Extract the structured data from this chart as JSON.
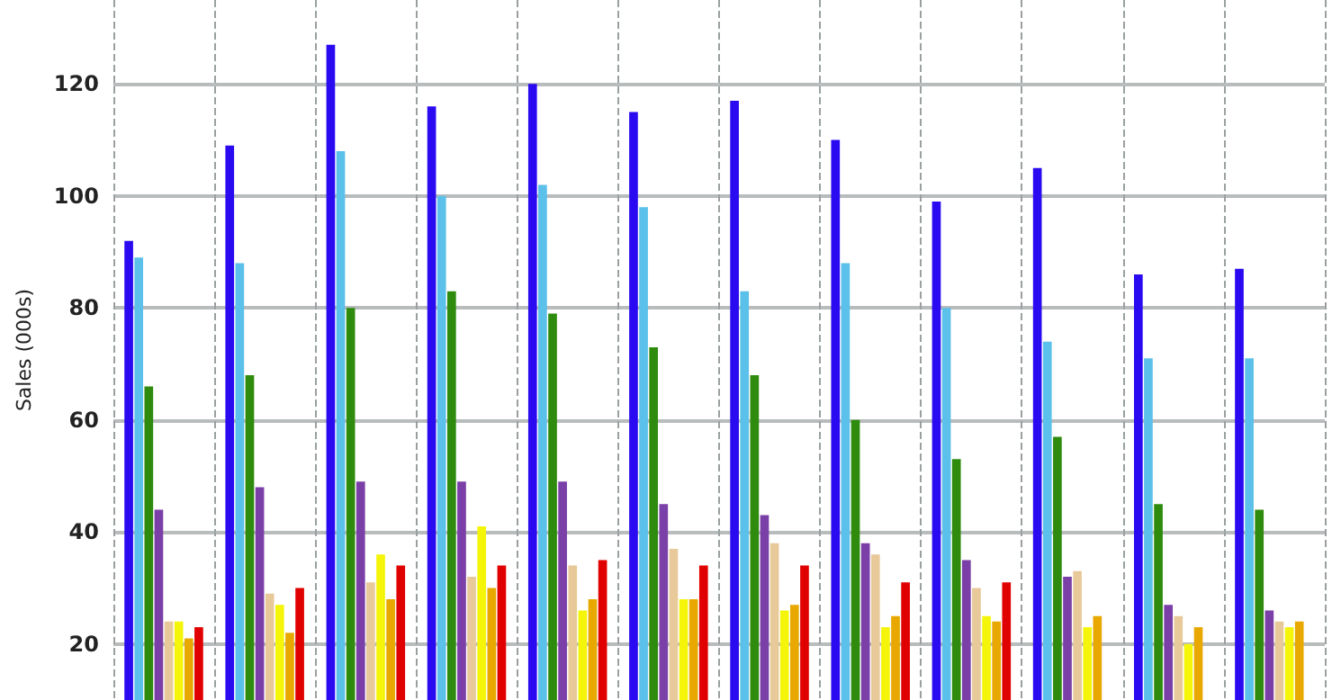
{
  "chart_data": {
    "type": "bar",
    "ylabel": "Sales (000s)",
    "categories": [
      null,
      null,
      null,
      null,
      null,
      null,
      null,
      null,
      null,
      null,
      null,
      null
    ],
    "series": [
      {
        "color": "#2a0af0",
        "values": [
          92,
          109,
          127,
          116,
          120,
          115,
          117,
          110,
          99,
          105,
          86,
          87
        ]
      },
      {
        "color": "#5bc0ea",
        "values": [
          89,
          88,
          108,
          100,
          102,
          98,
          83,
          88,
          80,
          74,
          71,
          71
        ]
      },
      {
        "color": "#2e8b0e",
        "values": [
          66,
          68,
          80,
          83,
          79,
          73,
          68,
          60,
          53,
          57,
          45,
          44
        ]
      },
      {
        "color": "#7b3fa8",
        "values": [
          44,
          48,
          49,
          49,
          49,
          45,
          43,
          38,
          35,
          32,
          27,
          26
        ]
      },
      {
        "color": "#e8c99a",
        "values": [
          24,
          29,
          31,
          32,
          34,
          37,
          38,
          36,
          30,
          33,
          25,
          24
        ]
      },
      {
        "color": "#f5f50a",
        "values": [
          24,
          27,
          36,
          41,
          26,
          28,
          26,
          23,
          25,
          23,
          20,
          23
        ]
      },
      {
        "color": "#e8a800",
        "values": [
          21,
          22,
          28,
          30,
          28,
          28,
          27,
          25,
          24,
          25,
          23,
          24
        ]
      },
      {
        "color": "#e00000",
        "values": [
          23,
          30,
          34,
          34,
          35,
          34,
          34,
          31,
          31,
          null,
          null,
          null
        ]
      }
    ],
    "ylim": [
      10,
      135
    ],
    "yticks": [
      20,
      40,
      60,
      80,
      100,
      120
    ],
    "grid": true,
    "tick_labels": "y"
  }
}
